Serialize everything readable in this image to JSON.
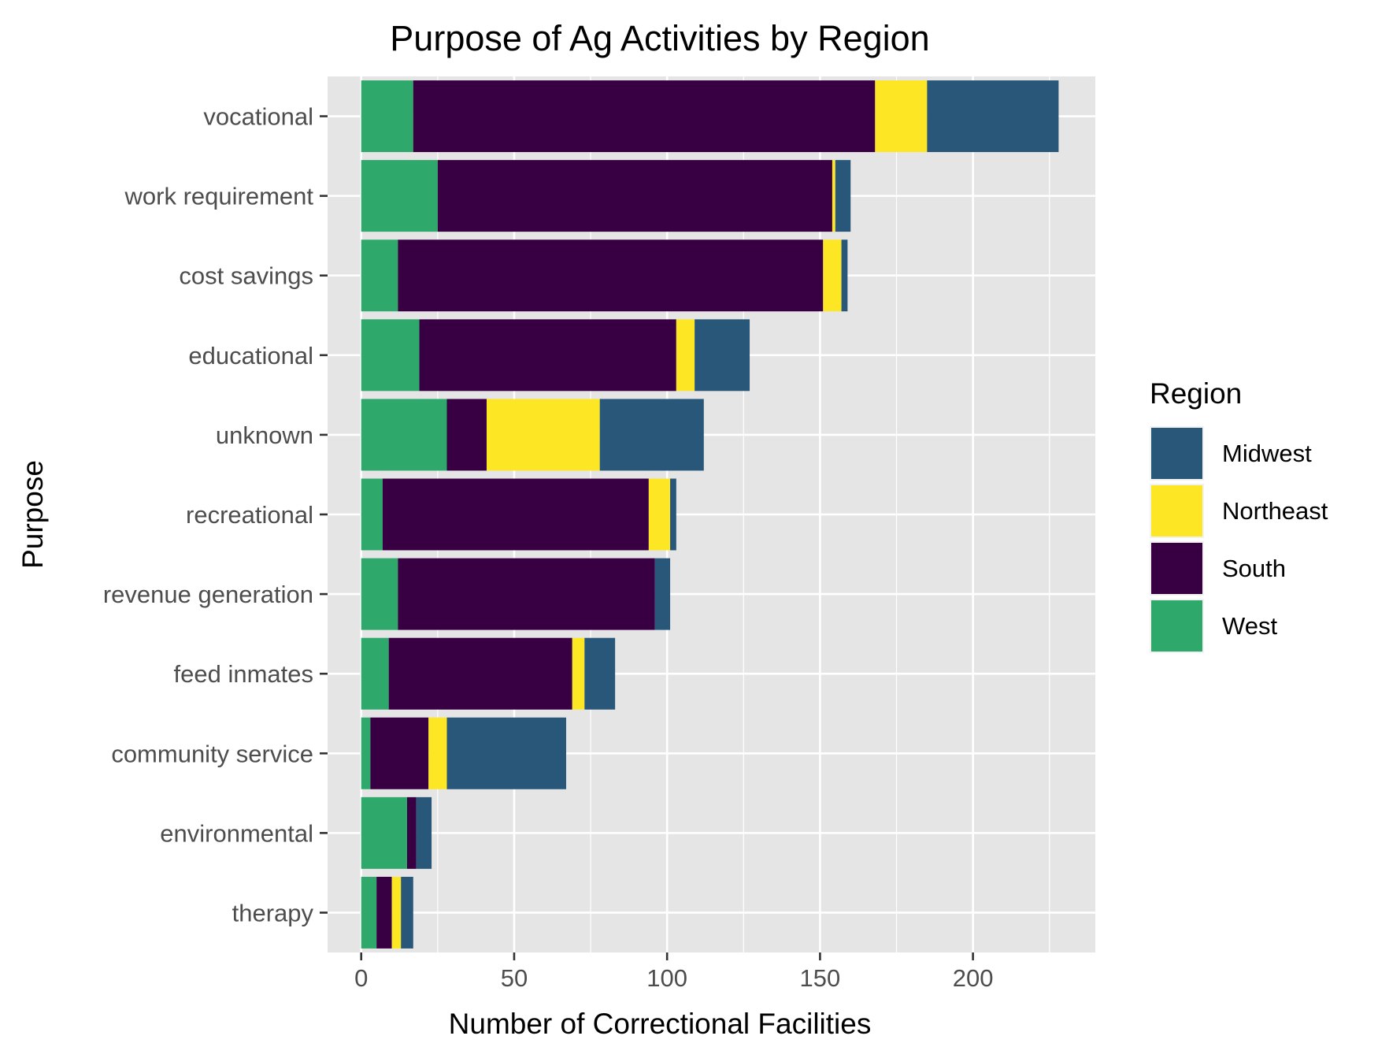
{
  "chart_data": {
    "type": "bar",
    "orientation": "horizontal",
    "stacked": true,
    "title": "Purpose of Ag Activities by Region",
    "xlabel": "Number of Correctional Facilities",
    "ylabel": "Purpose",
    "xlim": [
      -11,
      240
    ],
    "x_ticks": [
      0,
      50,
      100,
      150,
      200
    ],
    "grid": true,
    "legend": {
      "title": "Region",
      "position": "right",
      "entries": [
        "Midwest",
        "Northeast",
        "South",
        "West"
      ]
    },
    "stack_order": [
      "West",
      "South",
      "Northeast",
      "Midwest"
    ],
    "colors": {
      "Midwest": "#28577a",
      "Northeast": "#fde724",
      "South": "#380042",
      "West": "#2ea96b"
    },
    "categories": [
      "vocational",
      "work requirement",
      "cost savings",
      "educational",
      "unknown",
      "recreational",
      "revenue generation",
      "feed inmates",
      "community service",
      "environmental",
      "therapy"
    ],
    "series": [
      {
        "name": "West",
        "values": [
          17,
          25,
          12,
          19,
          28,
          7,
          12,
          9,
          3,
          15,
          5
        ]
      },
      {
        "name": "South",
        "values": [
          151,
          129,
          139,
          84,
          13,
          87,
          84,
          60,
          19,
          3,
          5
        ]
      },
      {
        "name": "Northeast",
        "values": [
          17,
          1,
          6,
          6,
          37,
          7,
          0,
          4,
          6,
          0,
          3
        ]
      },
      {
        "name": "Midwest",
        "values": [
          43,
          5,
          2,
          18,
          34,
          2,
          5,
          10,
          39,
          5,
          4
        ]
      }
    ]
  }
}
